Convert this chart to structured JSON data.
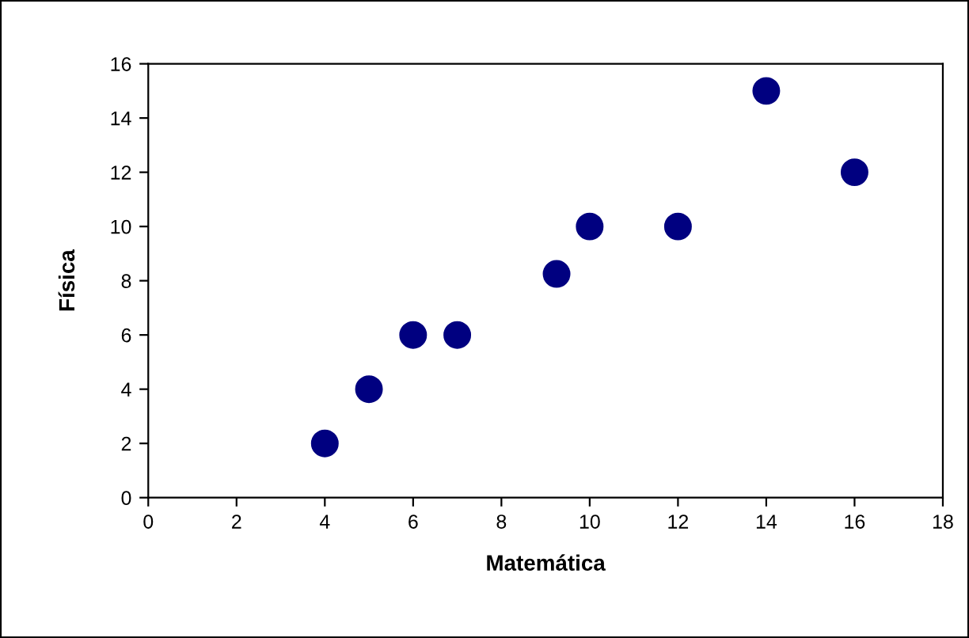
{
  "chart_data": {
    "type": "scatter",
    "xlabel": "Matemática",
    "ylabel": "Física",
    "x": [
      4,
      5,
      6,
      7,
      9.25,
      10,
      12,
      14,
      16
    ],
    "series": [
      {
        "color": "#000080",
        "values": [
          2,
          4,
          6,
          6,
          8.25,
          10,
          10,
          15,
          12
        ]
      }
    ],
    "xlim": [
      0,
      18
    ],
    "ylim": [
      0,
      16
    ],
    "xticks": [
      0,
      2,
      4,
      6,
      8,
      10,
      12,
      14,
      16,
      18
    ],
    "yticks": [
      0,
      2,
      4,
      6,
      8,
      10,
      12,
      14,
      16
    ],
    "grid": false,
    "legend": false,
    "marker": "circle"
  }
}
